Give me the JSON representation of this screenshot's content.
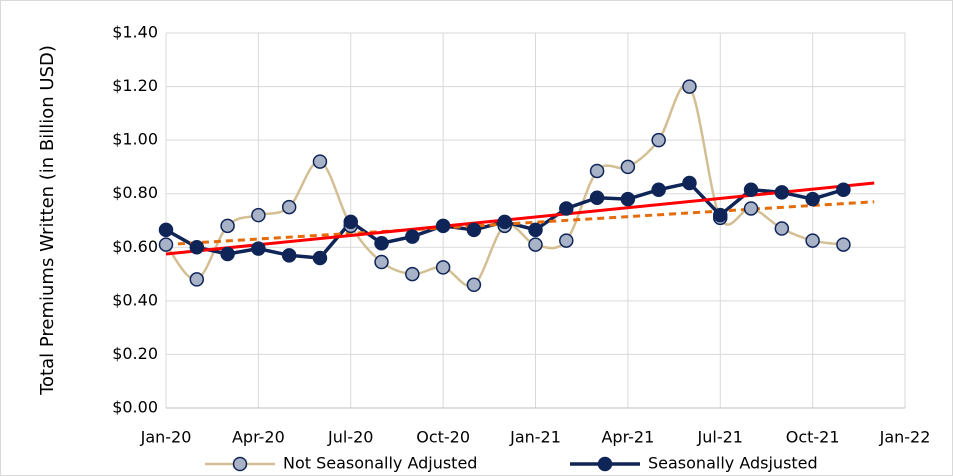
{
  "chart_data": {
    "type": "line",
    "y_label": "Total Premiums Written (in Billion USD)",
    "x": [
      "Jan-20",
      "Feb-20",
      "Mar-20",
      "Apr-20",
      "May-20",
      "Jun-20",
      "Jul-20",
      "Aug-20",
      "Sep-20",
      "Oct-20",
      "Nov-20",
      "Dec-20",
      "Jan-21",
      "Feb-21",
      "Mar-21",
      "Apr-21",
      "May-21",
      "Jun-21",
      "Jul-21",
      "Aug-21",
      "Sep-21",
      "Oct-21",
      "Nov-21"
    ],
    "series": [
      {
        "name": "Not Seasonally Adjusted",
        "color": "#d4bf94",
        "marker_fill": "#a8b3c8",
        "smooth": true,
        "values": [
          0.61,
          0.48,
          0.68,
          0.72,
          0.75,
          0.92,
          0.68,
          0.545,
          0.5,
          0.525,
          0.46,
          0.68,
          0.61,
          0.625,
          0.885,
          0.9,
          1.0,
          1.2,
          0.71,
          0.745,
          0.67,
          0.625,
          0.61
        ]
      },
      {
        "name": "Seasonally Adsjusted",
        "color": "#0f2557",
        "marker_fill": "#0f2557",
        "smooth": false,
        "values": [
          0.665,
          0.6,
          0.575,
          0.595,
          0.57,
          0.56,
          0.695,
          0.615,
          0.64,
          0.68,
          0.665,
          0.695,
          0.665,
          0.745,
          0.785,
          0.78,
          0.815,
          0.84,
          0.72,
          0.815,
          0.805,
          0.78,
          0.815
        ]
      }
    ],
    "trendlines": [
      {
        "color": "#e46c0a",
        "dashed": true,
        "x": [
          "Jan-20",
          "Dec-21"
        ],
        "values": [
          0.61,
          0.77
        ]
      },
      {
        "color": "#ff0000",
        "dashed": false,
        "x": [
          "Jan-20",
          "Dec-21"
        ],
        "values": [
          0.575,
          0.84
        ]
      }
    ],
    "xlim": [
      "Jan-20",
      "Jan-22"
    ],
    "xticks": [
      "Jan-20",
      "Apr-20",
      "Jul-20",
      "Oct-20",
      "Jan-21",
      "Apr-21",
      "Jul-21",
      "Oct-21",
      "Jan-22"
    ],
    "ylim": [
      0,
      1.4
    ],
    "yticks": [
      {
        "value": 0,
        "label": "$0.00"
      },
      {
        "value": 0.2,
        "label": "$0.20"
      },
      {
        "value": 0.4,
        "label": "$0.40"
      },
      {
        "value": 0.6,
        "label": "$0.60"
      },
      {
        "value": 0.8,
        "label": "$0.80"
      },
      {
        "value": 1.0,
        "label": "$1.00"
      },
      {
        "value": 1.2,
        "label": "$1.20"
      },
      {
        "value": 1.4,
        "label": "$1.40"
      }
    ],
    "grid": true,
    "legend": "bottom"
  }
}
